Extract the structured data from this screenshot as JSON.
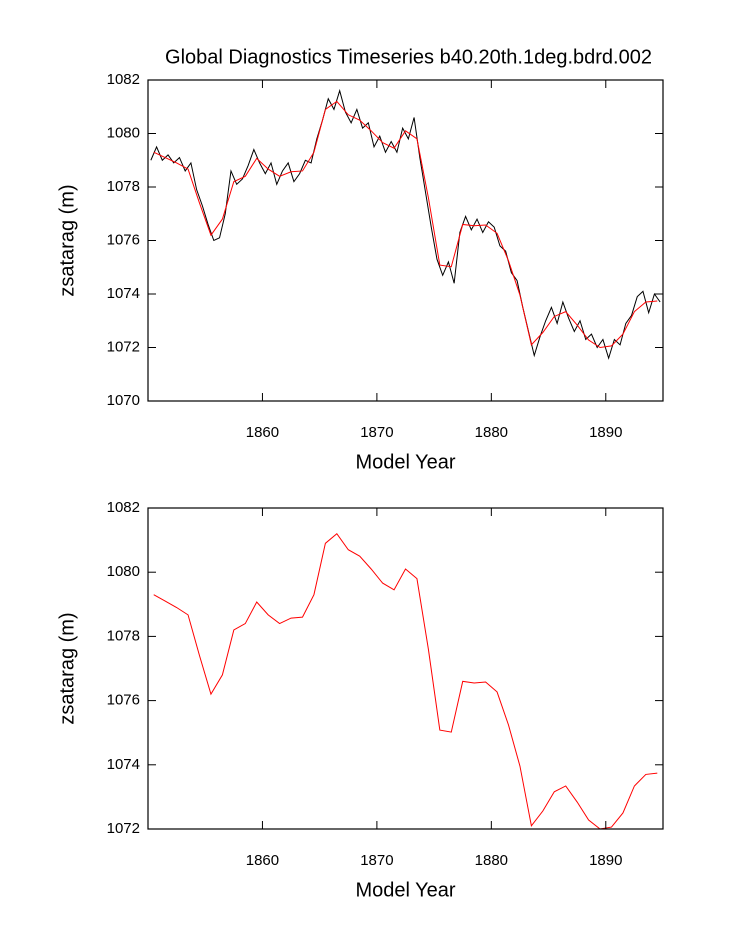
{
  "chart_data": [
    {
      "type": "line",
      "title": "Global Diagnostics Timeseries b40.20th.1deg.bdrd.002",
      "xlabel": "Model Year",
      "ylabel": "zsatarag (m)",
      "xlim": [
        1850,
        1895
      ],
      "xticks": [
        1860,
        1870,
        1880,
        1890
      ],
      "ylim": [
        1070,
        1082
      ],
      "yticks": [
        1070,
        1072,
        1074,
        1076,
        1078,
        1080,
        1082
      ],
      "series": [
        {
          "color": "#000000",
          "x": [
            1850.25,
            1850.75,
            1851.25,
            1851.75,
            1852.25,
            1852.75,
            1853.25,
            1853.75,
            1854.25,
            1854.75,
            1855.25,
            1855.75,
            1856.25,
            1856.75,
            1857.25,
            1857.75,
            1858.25,
            1858.75,
            1859.25,
            1859.75,
            1860.25,
            1860.75,
            1861.25,
            1861.75,
            1862.25,
            1862.75,
            1863.25,
            1863.75,
            1864.25,
            1864.75,
            1865.25,
            1865.75,
            1866.25,
            1866.75,
            1867.25,
            1867.75,
            1868.25,
            1868.75,
            1869.25,
            1869.75,
            1870.25,
            1870.75,
            1871.25,
            1871.75,
            1872.25,
            1872.75,
            1873.25,
            1873.75,
            1874.25,
            1874.75,
            1875.25,
            1875.75,
            1876.25,
            1876.75,
            1877.25,
            1877.75,
            1878.25,
            1878.75,
            1879.25,
            1879.75,
            1880.25,
            1880.75,
            1881.25,
            1881.75,
            1882.25,
            1882.75,
            1883.25,
            1883.75,
            1884.25,
            1884.75,
            1885.25,
            1885.75,
            1886.25,
            1886.75,
            1887.25,
            1887.75,
            1888.25,
            1888.75,
            1889.25,
            1889.75,
            1890.25,
            1890.75,
            1891.25,
            1891.75,
            1892.25,
            1892.75,
            1893.25,
            1893.75,
            1894.25,
            1894.75
          ],
          "values": [
            1079.0,
            1079.5,
            1079.0,
            1079.2,
            1078.9,
            1079.1,
            1078.6,
            1078.9,
            1077.9,
            1077.3,
            1076.6,
            1076.0,
            1076.1,
            1077.0,
            1078.6,
            1078.1,
            1078.3,
            1078.8,
            1079.4,
            1078.9,
            1078.5,
            1078.9,
            1078.1,
            1078.6,
            1078.9,
            1078.2,
            1078.5,
            1079.0,
            1078.9,
            1079.8,
            1080.5,
            1081.3,
            1080.9,
            1081.6,
            1080.8,
            1080.4,
            1080.9,
            1080.2,
            1080.4,
            1079.5,
            1079.9,
            1079.3,
            1079.7,
            1079.3,
            1080.2,
            1079.8,
            1080.6,
            1079.1,
            1077.8,
            1076.5,
            1075.3,
            1074.7,
            1075.2,
            1074.4,
            1076.3,
            1076.9,
            1076.4,
            1076.8,
            1076.3,
            1076.7,
            1076.5,
            1075.8,
            1075.6,
            1074.8,
            1074.5,
            1073.5,
            1072.6,
            1071.7,
            1072.4,
            1073.0,
            1073.5,
            1072.9,
            1073.7,
            1073.1,
            1072.6,
            1073.0,
            1072.3,
            1072.5,
            1072.0,
            1072.3,
            1071.6,
            1072.3,
            1072.1,
            1072.9,
            1073.2,
            1073.9,
            1074.1,
            1073.3,
            1074.0,
            1073.7
          ]
        },
        {
          "color": "#ff0000",
          "x": [
            1850.5,
            1851.5,
            1852.5,
            1853.5,
            1854.5,
            1855.5,
            1856.5,
            1857.5,
            1858.5,
            1859.5,
            1860.5,
            1861.5,
            1862.5,
            1863.5,
            1864.5,
            1865.5,
            1866.5,
            1867.5,
            1868.5,
            1869.5,
            1870.5,
            1871.5,
            1872.5,
            1873.5,
            1874.5,
            1875.5,
            1876.5,
            1877.5,
            1878.5,
            1879.5,
            1880.5,
            1881.5,
            1882.5,
            1883.5,
            1884.5,
            1885.5,
            1886.5,
            1887.5,
            1888.5,
            1889.5,
            1890.5,
            1891.5,
            1892.5,
            1893.5,
            1894.5
          ],
          "values": [
            1079.3,
            1079.1,
            1078.9,
            1078.67,
            1077.4,
            1076.2,
            1076.8,
            1078.2,
            1078.4,
            1079.07,
            1078.67,
            1078.4,
            1078.57,
            1078.6,
            1079.3,
            1080.9,
            1081.2,
            1080.7,
            1080.5,
            1080.1,
            1079.66,
            1079.45,
            1080.1,
            1079.8,
            1077.6,
            1075.08,
            1075.02,
            1076.6,
            1076.55,
            1076.58,
            1076.27,
            1075.24,
            1073.96,
            1072.1,
            1072.56,
            1073.16,
            1073.34,
            1072.84,
            1072.28,
            1072.0,
            1072.06,
            1072.5,
            1073.34,
            1073.7,
            1073.74
          ]
        }
      ]
    },
    {
      "type": "line",
      "xlabel": "Model Year",
      "ylabel": "zsatarag (m)",
      "xlim": [
        1850,
        1895
      ],
      "xticks": [
        1860,
        1870,
        1880,
        1890
      ],
      "ylim": [
        1072,
        1082
      ],
      "yticks": [
        1072,
        1074,
        1076,
        1078,
        1080,
        1082
      ],
      "series": [
        {
          "color": "#ff0000",
          "x": [
            1850.5,
            1851.5,
            1852.5,
            1853.5,
            1854.5,
            1855.5,
            1856.5,
            1857.5,
            1858.5,
            1859.5,
            1860.5,
            1861.5,
            1862.5,
            1863.5,
            1864.5,
            1865.5,
            1866.5,
            1867.5,
            1868.5,
            1869.5,
            1870.5,
            1871.5,
            1872.5,
            1873.5,
            1874.5,
            1875.5,
            1876.5,
            1877.5,
            1878.5,
            1879.5,
            1880.5,
            1881.5,
            1882.5,
            1883.5,
            1884.5,
            1885.5,
            1886.5,
            1887.5,
            1888.5,
            1889.5,
            1890.5,
            1891.5,
            1892.5,
            1893.5,
            1894.5
          ],
          "values": [
            1079.3,
            1079.1,
            1078.9,
            1078.67,
            1077.4,
            1076.2,
            1076.8,
            1078.2,
            1078.4,
            1079.07,
            1078.67,
            1078.4,
            1078.57,
            1078.6,
            1079.3,
            1080.9,
            1081.2,
            1080.7,
            1080.5,
            1080.1,
            1079.66,
            1079.45,
            1080.1,
            1079.8,
            1077.6,
            1075.08,
            1075.02,
            1076.6,
            1076.55,
            1076.58,
            1076.27,
            1075.24,
            1073.96,
            1072.1,
            1072.56,
            1073.16,
            1073.34,
            1072.84,
            1072.28,
            1072.0,
            1072.06,
            1072.5,
            1073.34,
            1073.7,
            1073.74
          ]
        }
      ]
    }
  ]
}
